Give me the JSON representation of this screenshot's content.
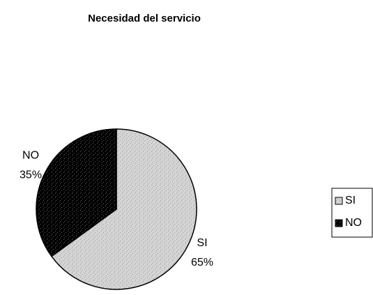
{
  "chart_data": {
    "type": "pie",
    "title": "Necesidad del servicio",
    "categories": [
      "SI",
      "NO"
    ],
    "values": [
      65,
      35
    ],
    "value_labels": [
      "65%",
      "35%"
    ],
    "colors": [
      "#d4d4d4",
      "#000000"
    ],
    "legend": "right"
  }
}
